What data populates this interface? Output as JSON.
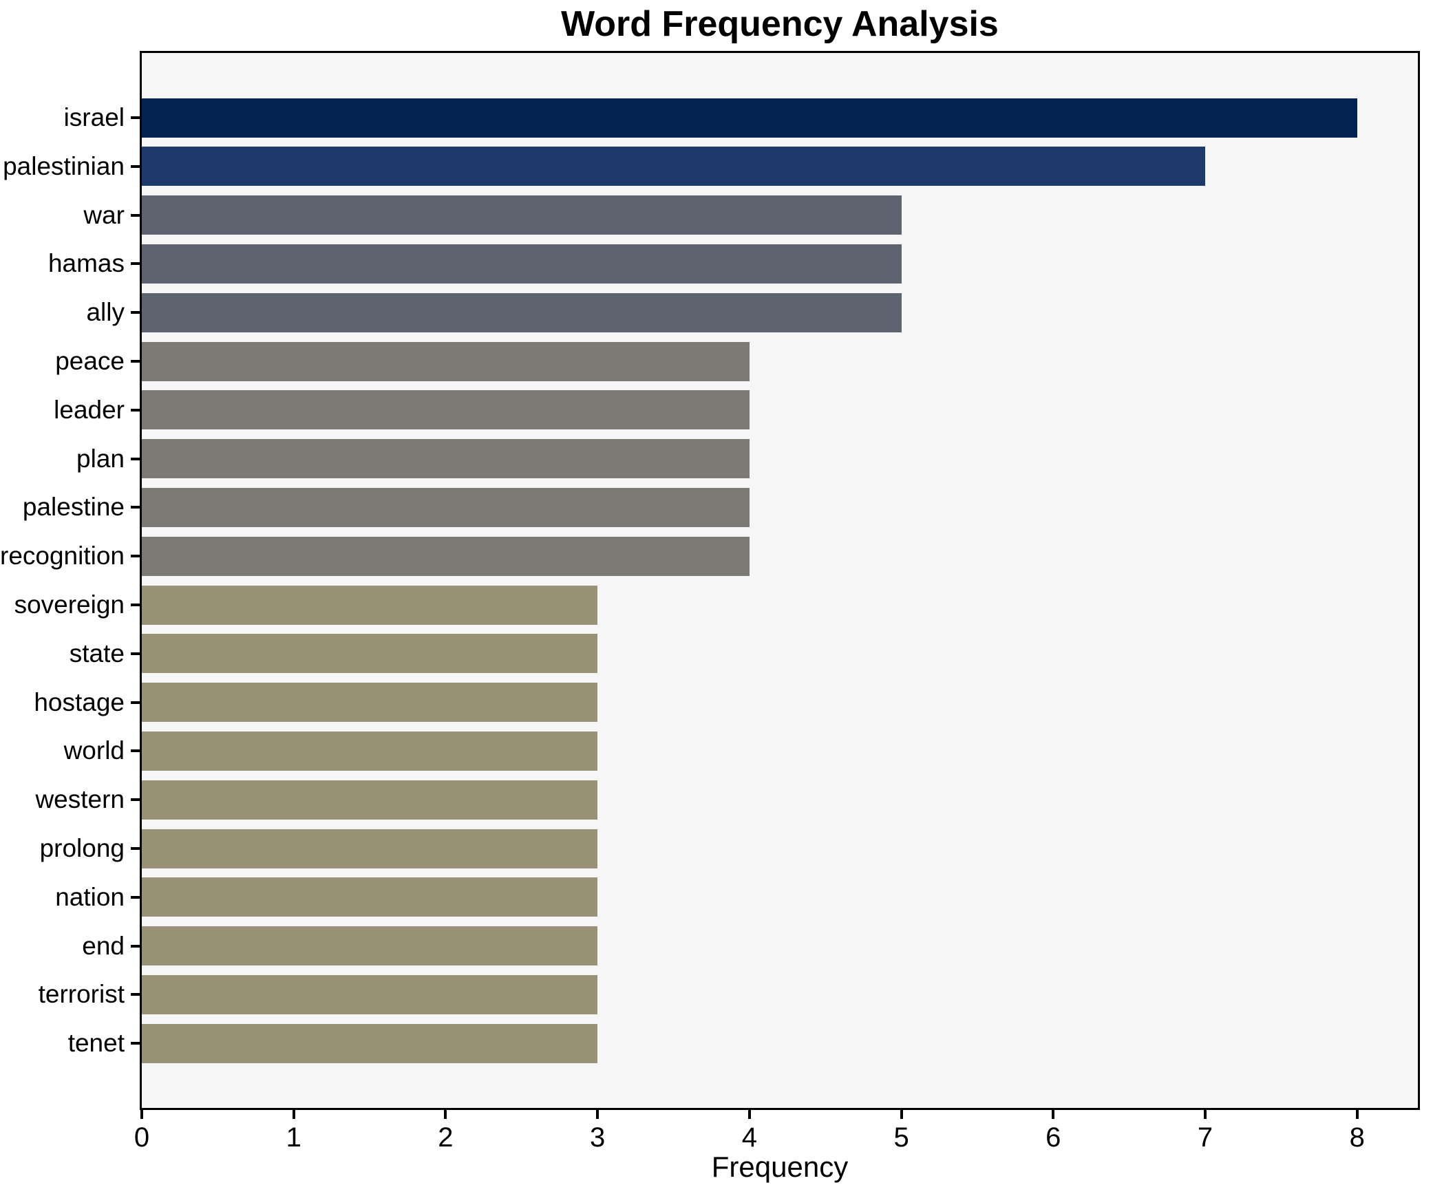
{
  "chart_data": {
    "type": "bar",
    "orientation": "horizontal",
    "title": "Word Frequency Analysis",
    "xlabel": "Frequency",
    "ylabel": "",
    "categories": [
      "israel",
      "palestinian",
      "war",
      "hamas",
      "ally",
      "peace",
      "leader",
      "plan",
      "palestine",
      "recognition",
      "sovereign",
      "state",
      "hostage",
      "world",
      "western",
      "prolong",
      "nation",
      "end",
      "terrorist",
      "tenet"
    ],
    "values": [
      8,
      7,
      5,
      5,
      5,
      4,
      4,
      4,
      4,
      4,
      3,
      3,
      3,
      3,
      3,
      3,
      3,
      3,
      3,
      3
    ],
    "bar_colors": [
      "#032350",
      "#1d3a6b",
      "#5e6370",
      "#5e6370",
      "#5e6370",
      "#7b7a74",
      "#7b7a74",
      "#7b7a74",
      "#7b7a74",
      "#7b7a74",
      "#9a9276",
      "#9a9276",
      "#9a9276",
      "#9a9276",
      "#9a9276",
      "#9a9276",
      "#9a9276",
      "#9a9276",
      "#9a9276",
      "#9a9276"
    ],
    "xlim": [
      0,
      8.4
    ],
    "x_ticks": [
      0,
      1,
      2,
      3,
      4,
      5,
      6,
      7,
      8
    ],
    "grid": false,
    "legend": null,
    "plot_background": "#f6f6f7",
    "figure_background": "#ffffff",
    "spine_color": "#000000",
    "text_color": "#000000"
  }
}
